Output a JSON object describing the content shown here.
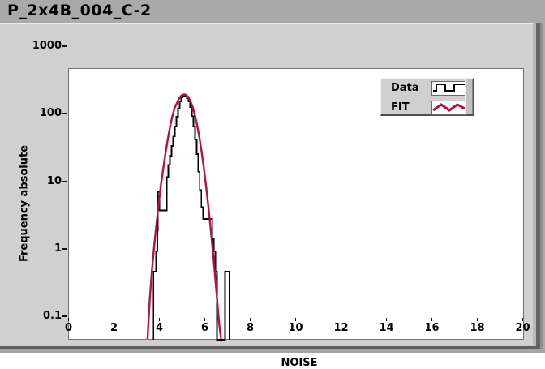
{
  "window": {
    "title": "P_2x4B_004_C-2"
  },
  "colors": {
    "data_series": "#000000",
    "fit_series": "#b5123f",
    "panel": "#d0d0d0",
    "title_strip": "#a9a9a9",
    "plot_background": "#ffffff"
  },
  "chart_data": {
    "type": "line",
    "title": "",
    "xlabel": "NOISE",
    "ylabel": "Frequency absolute",
    "x_scale": "linear",
    "y_scale": "log",
    "xlim": [
      0,
      20
    ],
    "ylim": [
      0.1,
      1000
    ],
    "grid": false,
    "x_ticks": [
      {
        "value": 0,
        "label": "0"
      },
      {
        "value": 2,
        "label": "2"
      },
      {
        "value": 4,
        "label": "4"
      },
      {
        "value": 6,
        "label": "6"
      },
      {
        "value": 8,
        "label": "8"
      },
      {
        "value": 10,
        "label": "10"
      },
      {
        "value": 12,
        "label": "12"
      },
      {
        "value": 14,
        "label": "14"
      },
      {
        "value": 16,
        "label": "16"
      },
      {
        "value": 18,
        "label": "18"
      },
      {
        "value": 20,
        "label": "20"
      }
    ],
    "y_ticks": [
      {
        "value": 1000,
        "label": "1000"
      },
      {
        "value": 100,
        "label": "100"
      },
      {
        "value": 10,
        "label": "10"
      },
      {
        "value": 1,
        "label": "1"
      },
      {
        "value": 0.1,
        "label": "0.1"
      }
    ],
    "legend": {
      "position": "top-right",
      "items": [
        {
          "label": "Data",
          "icon": "square-wave-line"
        },
        {
          "label": "FIT",
          "icon": "zigzag-line"
        }
      ]
    },
    "series": [
      {
        "name": "Data",
        "type": "step-histogram",
        "color": "#000000",
        "stroke_width": 1.8,
        "description": "Histogram of NOISE values, absolute frequency, log y-scale; bins step from ~3.7 to ~7.1",
        "steps_x_count": [
          [
            3.72,
            1
          ],
          [
            3.83,
            2
          ],
          [
            3.89,
            4
          ],
          [
            3.92,
            15
          ],
          [
            3.99,
            8
          ],
          [
            4.31,
            25
          ],
          [
            4.38,
            38
          ],
          [
            4.45,
            52
          ],
          [
            4.52,
            72
          ],
          [
            4.59,
            100
          ],
          [
            4.66,
            140
          ],
          [
            4.73,
            195
          ],
          [
            4.8,
            260
          ],
          [
            4.87,
            330
          ],
          [
            4.94,
            380
          ],
          [
            5.01,
            400
          ],
          [
            5.12,
            395
          ],
          [
            5.19,
            370
          ],
          [
            5.26,
            330
          ],
          [
            5.33,
            270
          ],
          [
            5.41,
            200
          ],
          [
            5.48,
            140
          ],
          [
            5.55,
            90
          ],
          [
            5.62,
            55
          ],
          [
            5.69,
            30
          ],
          [
            5.76,
            16
          ],
          [
            5.83,
            9
          ],
          [
            5.9,
            6
          ],
          [
            6.17,
            6
          ],
          [
            6.31,
            3
          ],
          [
            6.38,
            2
          ],
          [
            6.45,
            1
          ],
          [
            6.52,
            0
          ],
          [
            6.88,
            1
          ],
          [
            7.06,
            0
          ]
        ]
      },
      {
        "name": "FIT",
        "type": "line",
        "color": "#b5123f",
        "stroke_width": 2.4,
        "description": "Gaussian fit, peak ~420 at NOISE ~5.07, sigma ~0.41",
        "points": [
          [
            3.46,
            0.1
          ],
          [
            3.55,
            0.35
          ],
          [
            3.65,
            1
          ],
          [
            3.75,
            2.3
          ],
          [
            3.85,
            5
          ],
          [
            3.95,
            10
          ],
          [
            4.05,
            19
          ],
          [
            4.15,
            33
          ],
          [
            4.25,
            56
          ],
          [
            4.35,
            90
          ],
          [
            4.45,
            138
          ],
          [
            4.55,
            197
          ],
          [
            4.65,
            262
          ],
          [
            4.75,
            310
          ],
          [
            4.85,
            364
          ],
          [
            4.95,
            402
          ],
          [
            5.07,
            420
          ],
          [
            5.15,
            413
          ],
          [
            5.25,
            386
          ],
          [
            5.35,
            333
          ],
          [
            5.45,
            272
          ],
          [
            5.55,
            205
          ],
          [
            5.65,
            144
          ],
          [
            5.75,
            94
          ],
          [
            5.85,
            57
          ],
          [
            5.95,
            32
          ],
          [
            6.05,
            17
          ],
          [
            6.15,
            8.5
          ],
          [
            6.25,
            4
          ],
          [
            6.35,
            1.8
          ],
          [
            6.45,
            0.75
          ],
          [
            6.55,
            0.3
          ],
          [
            6.62,
            0.16
          ],
          [
            6.7,
            0.1
          ]
        ]
      }
    ]
  }
}
